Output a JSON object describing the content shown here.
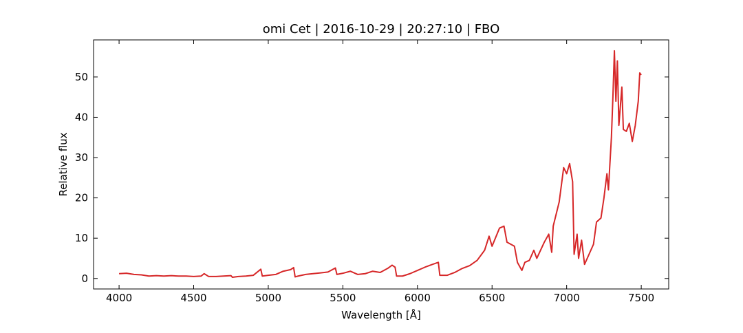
{
  "chart_data": {
    "type": "line",
    "title": "omi Cet | 2016-10-29 | 20:27:10 | FBO",
    "x_label": "Wavelength [Å]",
    "y_label": "Relative flux",
    "x": [
      4000,
      4050,
      4100,
      4150,
      4200,
      4250,
      4300,
      4350,
      4400,
      4450,
      4500,
      4550,
      4570,
      4600,
      4650,
      4700,
      4750,
      4760,
      4800,
      4850,
      4900,
      4950,
      4960,
      5000,
      5050,
      5100,
      5150,
      5170,
      5180,
      5200,
      5250,
      5300,
      5350,
      5400,
      5450,
      5460,
      5500,
      5550,
      5600,
      5650,
      5700,
      5750,
      5800,
      5830,
      5850,
      5860,
      5900,
      5950,
      6000,
      6050,
      6100,
      6140,
      6150,
      6200,
      6250,
      6300,
      6350,
      6400,
      6450,
      6480,
      6500,
      6550,
      6580,
      6600,
      6650,
      6670,
      6700,
      6720,
      6750,
      6780,
      6800,
      6850,
      6880,
      6900,
      6910,
      6950,
      6980,
      7000,
      7020,
      7040,
      7050,
      7070,
      7080,
      7100,
      7120,
      7150,
      7180,
      7200,
      7230,
      7250,
      7270,
      7280,
      7300,
      7310,
      7320,
      7330,
      7340,
      7350,
      7370,
      7380,
      7400,
      7420,
      7440,
      7460,
      7480,
      7490,
      7500
    ],
    "series": [
      {
        "name": "omi Cet",
        "color": "#d62728",
        "values": [
          1.2,
          1.3,
          1.0,
          0.9,
          0.6,
          0.7,
          0.6,
          0.7,
          0.6,
          0.6,
          0.5,
          0.6,
          1.2,
          0.5,
          0.5,
          0.6,
          0.7,
          0.3,
          0.5,
          0.6,
          0.8,
          2.3,
          0.6,
          0.8,
          1.0,
          1.8,
          2.2,
          2.7,
          0.4,
          0.6,
          1.0,
          1.2,
          1.4,
          1.6,
          2.6,
          1.0,
          1.3,
          1.8,
          1.0,
          1.2,
          1.8,
          1.5,
          2.5,
          3.3,
          2.8,
          0.6,
          0.6,
          1.2,
          2.0,
          2.8,
          3.5,
          4.0,
          0.8,
          0.8,
          1.5,
          2.5,
          3.2,
          4.5,
          7.0,
          10.5,
          8.0,
          12.5,
          13.0,
          9.0,
          8.0,
          4.0,
          2.0,
          4.0,
          4.5,
          7.0,
          5.0,
          9.0,
          11.0,
          6.5,
          13.0,
          19.0,
          27.5,
          26.0,
          28.5,
          24.0,
          6.0,
          11.0,
          5.0,
          9.5,
          3.5,
          6.0,
          8.5,
          14.0,
          15.0,
          20.0,
          26.0,
          22.0,
          35.0,
          45.0,
          56.5,
          44.0,
          54.0,
          38.0,
          47.5,
          37.0,
          36.5,
          38.5,
          34.0,
          38.0,
          44.0,
          51.0,
          50.5
        ]
      }
    ],
    "xlim": [
      3829,
      7684
    ],
    "ylim": [
      -2.6,
      59.2
    ],
    "xticks": [
      4000,
      4500,
      5000,
      5500,
      6000,
      6500,
      7000,
      7500
    ],
    "yticks": [
      0,
      10,
      20,
      30,
      40,
      50
    ]
  }
}
